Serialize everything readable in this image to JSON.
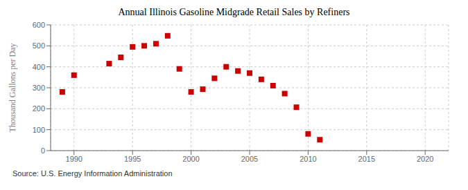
{
  "chart_data": {
    "type": "scatter",
    "title": "Annual Illinois Gasoline Midgrade Retail Sales by Refiners",
    "ylabel": "Thousand Gallons per Day",
    "annotations": [
      "Source: U.S. Energy Information Administration"
    ],
    "color": "#cc0000",
    "marker": "square",
    "xlim": [
      1988,
      2022
    ],
    "ylim": [
      0,
      600
    ],
    "xticks": [
      1990,
      1995,
      2000,
      2005,
      2010,
      2015,
      2020
    ],
    "yticks": [
      0,
      100,
      200,
      300,
      400,
      500,
      600
    ],
    "grid": true,
    "x": [
      1989,
      1990,
      1993,
      1994,
      1995,
      1996,
      1997,
      1998,
      1999,
      2000,
      2001,
      2002,
      2003,
      2004,
      2005,
      2006,
      2007,
      2008,
      2009,
      2010,
      2011
    ],
    "values": [
      280,
      360,
      415,
      445,
      495,
      500,
      510,
      548,
      390,
      280,
      293,
      345,
      400,
      380,
      370,
      340,
      310,
      272,
      207,
      80,
      52
    ]
  }
}
